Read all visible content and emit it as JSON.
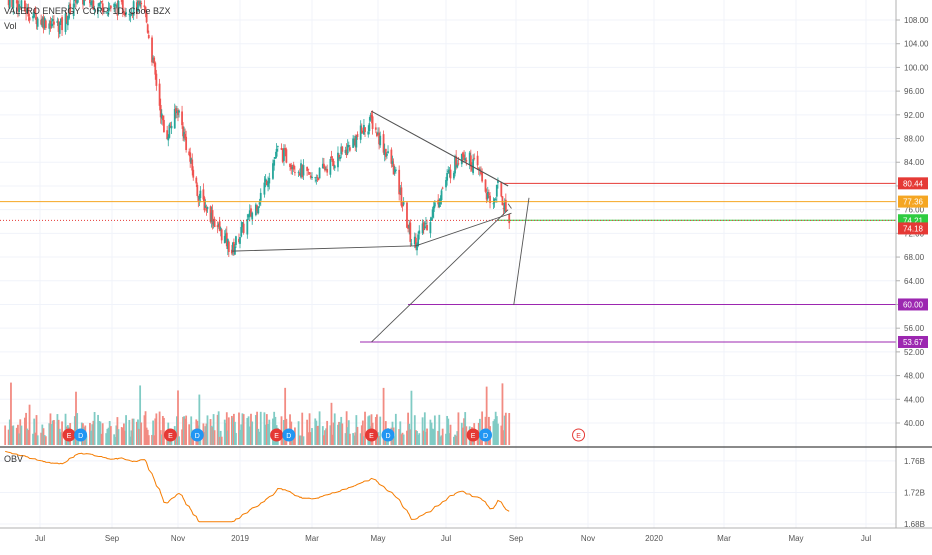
{
  "header": {
    "symbol_title": "VALERO ENERGY CORP, 1D, Cboe BZX",
    "volume_label": "Vol"
  },
  "obv_label": "OBV",
  "colors": {
    "up": "#26a69a",
    "down": "#ef5350",
    "vol_up": "#80cbc4",
    "vol_down": "#f28b82",
    "resistance": "#e53935",
    "orange_line": "#f5a623",
    "support": "#2ecc40",
    "target": "#9c27b0",
    "obv_line": "#f57c00",
    "grid": "#f0f3fa",
    "axis_text": "#555555",
    "drawing": "#555555"
  },
  "chart_data": [
    {
      "type": "candlestick",
      "title": "VALERO ENERGY CORP, 1D, Cboe BZX",
      "y_axis_ticks": [
        "108.00",
        "104.00",
        "100.00",
        "96.00",
        "92.00",
        "88.00",
        "84.00",
        "80.00",
        "76.00",
        "72.00",
        "68.00",
        "64.00",
        "60.00",
        "56.00",
        "52.00",
        "48.00",
        "44.00",
        "40.00"
      ],
      "ylim": [
        38.0,
        112.0
      ],
      "x_axis_ticks": [
        "Jul",
        "Sep",
        "Nov",
        "2019",
        "Mar",
        "May",
        "Jul",
        "Sep",
        "Nov",
        "2020",
        "Mar",
        "May",
        "Jul"
      ],
      "price_path_approx": [
        {
          "date": "2018-06-01",
          "close": 112
        },
        {
          "date": "2018-07-01",
          "close": 108
        },
        {
          "date": "2018-07-20",
          "close": 107
        },
        {
          "date": "2018-08-01",
          "close": 112
        },
        {
          "date": "2018-09-01",
          "close": 110
        },
        {
          "date": "2018-10-01",
          "close": 110
        },
        {
          "date": "2018-10-20",
          "close": 88
        },
        {
          "date": "2018-11-01",
          "close": 93
        },
        {
          "date": "2018-11-20",
          "close": 79
        },
        {
          "date": "2018-12-24",
          "close": 69
        },
        {
          "date": "2019-01-15",
          "close": 77
        },
        {
          "date": "2019-02-01",
          "close": 86
        },
        {
          "date": "2019-03-01",
          "close": 81
        },
        {
          "date": "2019-04-01",
          "close": 86
        },
        {
          "date": "2019-04-25",
          "close": 91
        },
        {
          "date": "2019-05-15",
          "close": 83
        },
        {
          "date": "2019-06-01",
          "close": 70
        },
        {
          "date": "2019-06-15",
          "close": 74
        },
        {
          "date": "2019-07-01",
          "close": 81
        },
        {
          "date": "2019-07-15",
          "close": 86
        },
        {
          "date": "2019-08-01",
          "close": 82
        },
        {
          "date": "2019-08-10",
          "close": 76
        },
        {
          "date": "2019-08-16",
          "close": 80
        },
        {
          "date": "2019-08-26",
          "close": 74
        }
      ],
      "price_labels": [
        {
          "value": 80.44,
          "text": "80.44",
          "color": "#e53935",
          "label": "resistance"
        },
        {
          "value": 77.36,
          "text": "77.36",
          "color": "#f5a623",
          "label": "orange level"
        },
        {
          "value": 74.21,
          "text": "74.21",
          "color": "#2ecc40",
          "label": "support"
        },
        {
          "value": 74.18,
          "text": "74.18",
          "color": "#e53935",
          "label": "last price"
        },
        {
          "value": 60.0,
          "text": "60.00",
          "color": "#9c27b0",
          "label": "target 1"
        },
        {
          "value": 53.67,
          "text": "53.67",
          "color": "#9c27b0",
          "label": "target 2"
        }
      ],
      "events": [
        {
          "date": "2018-07-26",
          "type": "E"
        },
        {
          "date": "2018-08-05",
          "type": "D"
        },
        {
          "date": "2018-10-25",
          "type": "E"
        },
        {
          "date": "2018-11-20",
          "type": "D"
        },
        {
          "date": "2019-01-31",
          "type": "E"
        },
        {
          "date": "2019-02-10",
          "type": "D"
        },
        {
          "date": "2019-04-25",
          "type": "E"
        },
        {
          "date": "2019-05-10",
          "type": "D"
        },
        {
          "date": "2019-07-25",
          "type": "E"
        },
        {
          "date": "2019-08-05",
          "type": "D"
        },
        {
          "date": "2019-10-24",
          "type": "E"
        }
      ]
    },
    {
      "type": "line",
      "title": "OBV",
      "y_axis_ticks": [
        "1.76B",
        "1.72B",
        "1.68B"
      ],
      "ylim": [
        1.675,
        1.775
      ]
    }
  ]
}
